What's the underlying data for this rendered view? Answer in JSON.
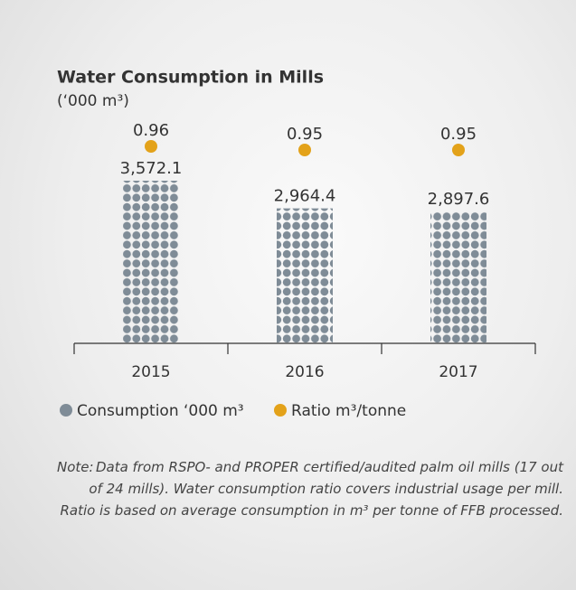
{
  "chart_data": {
    "type": "bar",
    "title": "Water Consumption in Mills",
    "subtitle": "(‘000 m³)",
    "categories": [
      "2015",
      "2016",
      "2017"
    ],
    "series": [
      {
        "name": "Consumption ‘000 m³",
        "color": "#7f8c97",
        "values": [
          3572.1,
          2964.4,
          2897.6
        ],
        "value_labels": [
          "3,572.1",
          "2,964.4",
          "2,897.6"
        ]
      },
      {
        "name": "Ratio m³/tonne",
        "color": "#e3a21a",
        "values": [
          0.96,
          0.95,
          0.95
        ]
      }
    ],
    "note_label": "Note:",
    "note": "Data from RSPO- and PROPER certified/audited palm oil mills (17 out of 24 mills). Water consumption ratio covers industrial usage per mill. Ratio is based on average consumption in m³ per tonne of FFB processed."
  }
}
